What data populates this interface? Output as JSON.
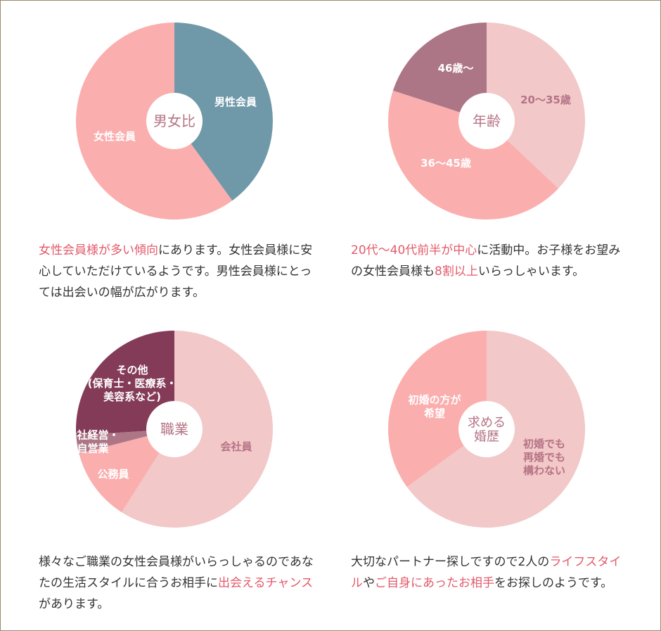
{
  "colors": {
    "highlight": "#e35a6a",
    "text": "#333333",
    "border": "#9b8a6a"
  },
  "chart_data": [
    {
      "type": "pie",
      "center_label": [
        "男女比"
      ],
      "slices": [
        {
          "label": [
            "男性会員"
          ],
          "value": 40,
          "color": "#6f99a9",
          "label_color": "#ffffff"
        },
        {
          "label": [
            "女性会員"
          ],
          "value": 60,
          "color": "#fbaeae",
          "label_color": "#ffffff"
        }
      ],
      "description": [
        {
          "text": "女性会員様が多い傾向",
          "highlight": true
        },
        {
          "text": "にあります。女性会員様に安心していただけているようです。男性会員様にとっては出会いの幅が広がります。",
          "highlight": false
        }
      ]
    },
    {
      "type": "pie",
      "center_label": [
        "年齢"
      ],
      "slices": [
        {
          "label": [
            "20〜35歳"
          ],
          "value": 37,
          "color": "#f2c8c8",
          "label_color": "#b57386"
        },
        {
          "label": [
            "36〜45歳"
          ],
          "value": 43,
          "color": "#fbaeae",
          "label_color": "#ffffff"
        },
        {
          "label": [
            "46歳〜"
          ],
          "value": 20,
          "color": "#ad7686",
          "label_color": "#ffffff"
        }
      ],
      "description": [
        {
          "text": "20代〜40代前半が中心",
          "highlight": true
        },
        {
          "text": "に活動中。お子様をお望みの女性会員様も",
          "highlight": false
        },
        {
          "text": "8割以上",
          "highlight": true
        },
        {
          "text": "いらっしゃいます。",
          "highlight": false
        }
      ]
    },
    {
      "type": "pie",
      "center_label": [
        "職業"
      ],
      "slices": [
        {
          "label": [
            "会社員"
          ],
          "value": 59,
          "color": "#f2c8c8",
          "label_color": "#b57386"
        },
        {
          "label": [
            "公務員"
          ],
          "value": 12,
          "color": "#fbaeae",
          "label_color": "#ffffff"
        },
        {
          "label": [
            "会社経営・",
            "自営業"
          ],
          "value": 3,
          "color": "#ad7686",
          "label_color": "#ffffff"
        },
        {
          "label": [
            "その他",
            "(保育士・医療系・",
            "美容系など)"
          ],
          "value": 26,
          "color": "#843b58",
          "label_color": "#ffffff"
        }
      ],
      "description": [
        {
          "text": "様々なご職業の女性会員様がいらっしゃるのであなたの生活スタイルに合うお相手に",
          "highlight": false
        },
        {
          "text": "出会えるチャンス",
          "highlight": true
        },
        {
          "text": "があります。",
          "highlight": false
        }
      ]
    },
    {
      "type": "pie",
      "center_label": [
        "求める",
        "婚歴"
      ],
      "slices": [
        {
          "label": [
            "初婚でも",
            "再婚でも",
            "構わない"
          ],
          "value": 65,
          "color": "#f2c8c8",
          "label_color": "#b57386"
        },
        {
          "label": [
            "初婚の方が",
            "希望"
          ],
          "value": 35,
          "color": "#fbaeae",
          "label_color": "#ffffff"
        }
      ],
      "description": [
        {
          "text": "大切なパートナー探しですので2人の",
          "highlight": false
        },
        {
          "text": "ライフスタイル",
          "highlight": true
        },
        {
          "text": "や",
          "highlight": false
        },
        {
          "text": "ご自身にあったお相手",
          "highlight": true
        },
        {
          "text": "をお探しのようです。",
          "highlight": false
        }
      ]
    }
  ]
}
